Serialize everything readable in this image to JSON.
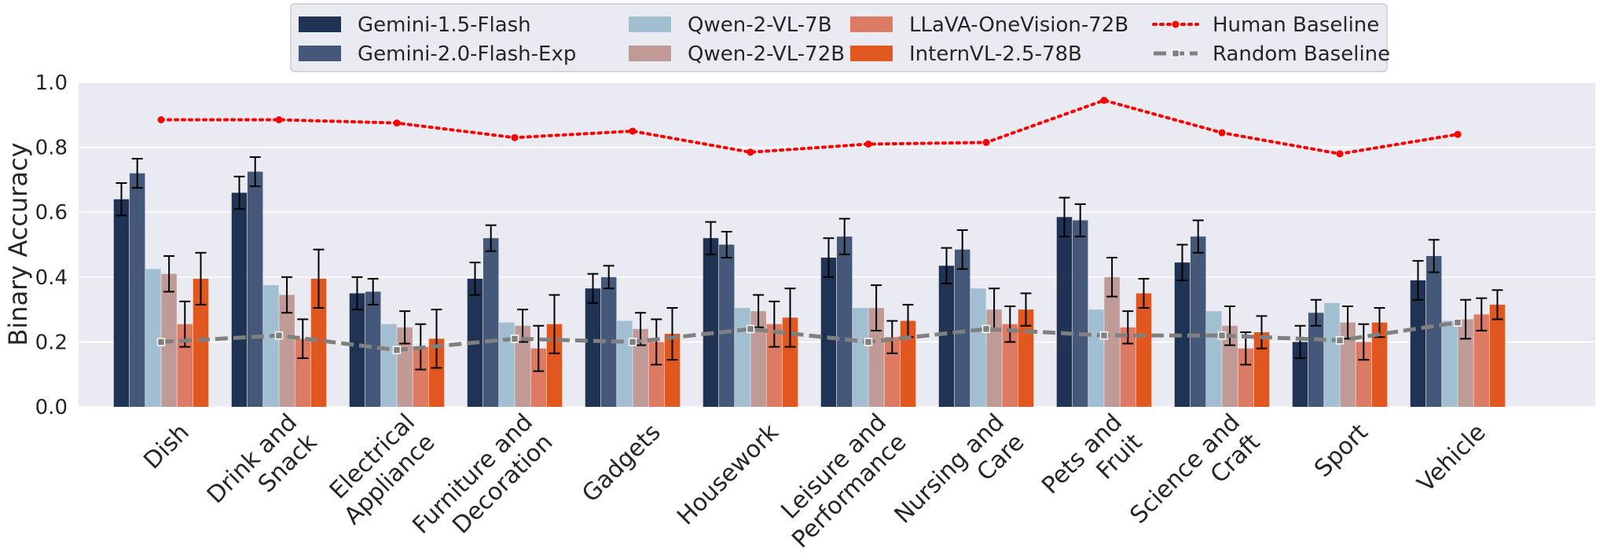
{
  "chart_data": {
    "type": "bar",
    "ylabel": "Binary Accuracy",
    "xlabel": "",
    "ylim": [
      0,
      1.0
    ],
    "yticks": [
      "0.0",
      "0.2",
      "0.4",
      "0.6",
      "0.8",
      "1.0"
    ],
    "grid": true,
    "legend_position": "top-center",
    "categories": [
      [
        "Dish"
      ],
      [
        "Drink and",
        "Snack"
      ],
      [
        "Electrical",
        "Appliance"
      ],
      [
        "Furniture and",
        "Decoration"
      ],
      [
        "Gadgets"
      ],
      [
        "Housework"
      ],
      [
        "Leisure and",
        "Performance"
      ],
      [
        "Nursing and",
        "Care"
      ],
      [
        "Pets and",
        "Fruit"
      ],
      [
        "Science and",
        "Craft"
      ],
      [
        "Sport"
      ],
      [
        "Vehicle"
      ]
    ],
    "series": [
      {
        "name": "Gemini-1.5-Flash",
        "color": "#1f3354",
        "values": [
          0.64,
          0.66,
          0.35,
          0.395,
          0.365,
          0.52,
          0.46,
          0.435,
          0.585,
          0.445,
          0.2,
          0.39
        ],
        "errors": [
          0.05,
          0.05,
          0.05,
          0.05,
          0.045,
          0.05,
          0.06,
          0.055,
          0.06,
          0.055,
          0.05,
          0.06
        ]
      },
      {
        "name": "Gemini-2.0-Flash-Exp",
        "color": "#44597a",
        "values": [
          0.72,
          0.725,
          0.355,
          0.52,
          0.4,
          0.5,
          0.525,
          0.485,
          0.575,
          0.525,
          0.29,
          0.465
        ],
        "errors": [
          0.045,
          0.045,
          0.04,
          0.04,
          0.035,
          0.04,
          0.055,
          0.06,
          0.05,
          0.05,
          0.04,
          0.05
        ]
      },
      {
        "name": "Qwen-2-VL-7B",
        "color": "#a1bfd1",
        "values": [
          0.425,
          0.375,
          0.255,
          0.26,
          0.265,
          0.305,
          0.305,
          0.365,
          0.3,
          0.295,
          0.32,
          0.265
        ]
      },
      {
        "name": "Qwen-2-VL-72B",
        "color": "#c09a96",
        "values": [
          0.41,
          0.345,
          0.245,
          0.25,
          0.24,
          0.295,
          0.305,
          0.3,
          0.4,
          0.25,
          0.26,
          0.27
        ],
        "errors": [
          0.055,
          0.055,
          0.05,
          0.05,
          0.05,
          0.05,
          0.07,
          0.065,
          0.06,
          0.06,
          0.05,
          0.06
        ]
      },
      {
        "name": "LLaVA-OneVision-72B",
        "color": "#dd7a64",
        "values": [
          0.255,
          0.21,
          0.185,
          0.18,
          0.2,
          0.255,
          0.215,
          0.255,
          0.245,
          0.18,
          0.2,
          0.285
        ],
        "errors": [
          0.07,
          0.06,
          0.07,
          0.07,
          0.07,
          0.07,
          0.05,
          0.055,
          0.05,
          0.05,
          0.055,
          0.05
        ]
      },
      {
        "name": "InternVL-2.5-78B",
        "color": "#e0581f",
        "values": [
          0.395,
          0.395,
          0.21,
          0.255,
          0.225,
          0.275,
          0.265,
          0.3,
          0.35,
          0.23,
          0.26,
          0.315
        ],
        "errors": [
          0.08,
          0.09,
          0.09,
          0.09,
          0.08,
          0.09,
          0.05,
          0.05,
          0.045,
          0.05,
          0.045,
          0.045
        ]
      }
    ],
    "lines": [
      {
        "name": "Human Baseline",
        "color": "#ff0000",
        "style": "dotted",
        "values": [
          0.885,
          0.885,
          0.875,
          0.83,
          0.85,
          0.785,
          0.81,
          0.815,
          0.945,
          0.845,
          0.78,
          0.84
        ]
      },
      {
        "name": "Random Baseline",
        "color": "#808080",
        "style": "dashed",
        "values": [
          0.2,
          0.22,
          0.175,
          0.21,
          0.2,
          0.24,
          0.2,
          0.24,
          0.22,
          0.22,
          0.205,
          0.26
        ]
      }
    ]
  }
}
